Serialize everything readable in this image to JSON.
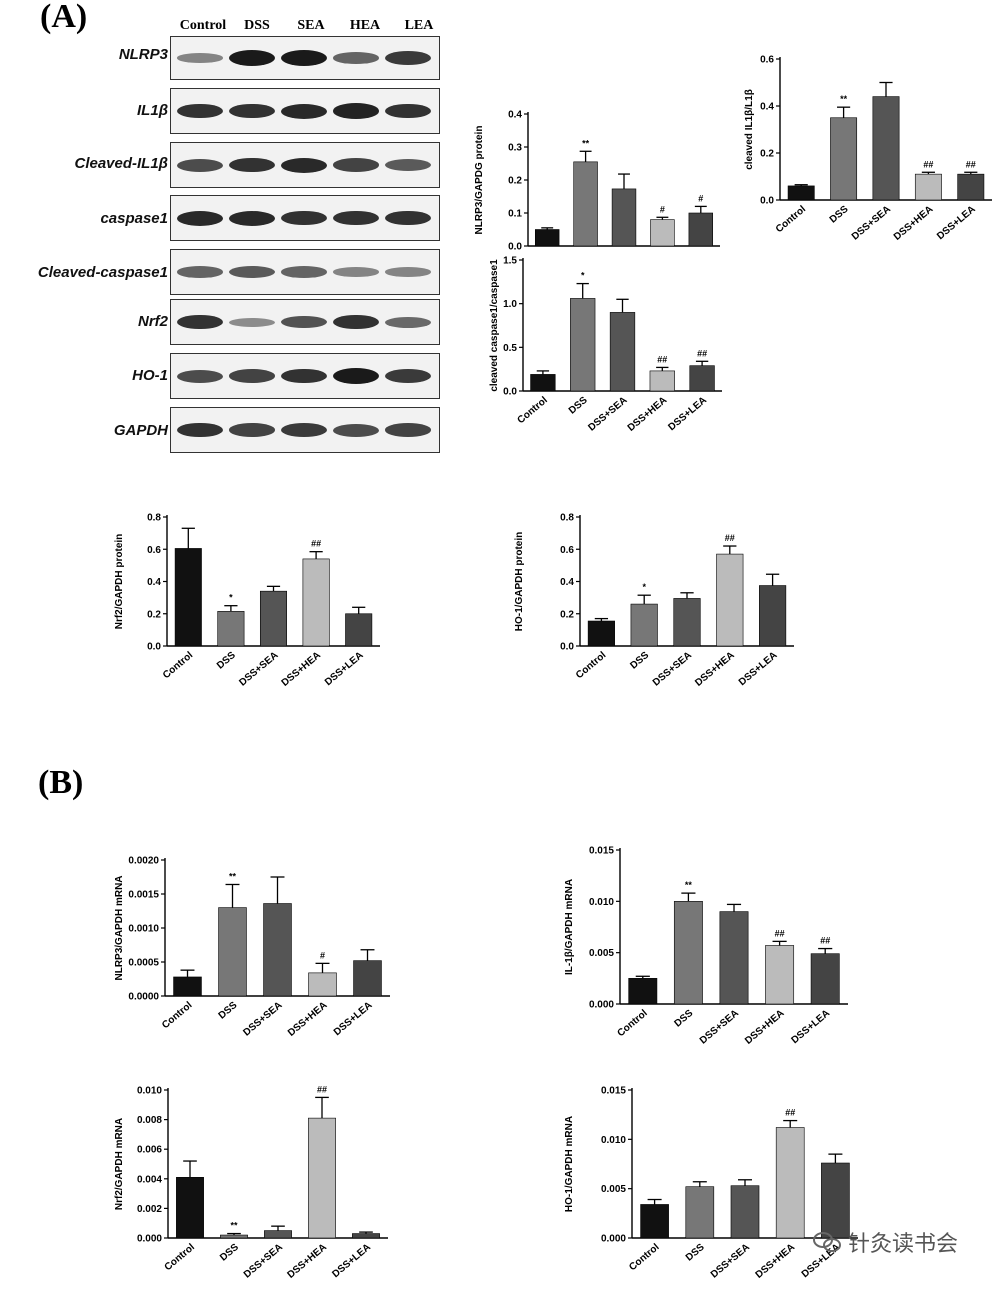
{
  "panels": {
    "a": "(A)",
    "b": "(B)"
  },
  "blot": {
    "lanes": [
      "Control",
      "DSS",
      "SEA",
      "HEA",
      "LEA"
    ],
    "rows": [
      {
        "label": "NLRP3",
        "intensity": [
          0.35,
          1.0,
          1.0,
          0.55,
          0.8
        ]
      },
      {
        "label": "IL1β",
        "intensity": [
          0.85,
          0.85,
          0.9,
          0.95,
          0.85
        ]
      },
      {
        "label": "Cleaved-IL1β",
        "intensity": [
          0.7,
          0.85,
          0.9,
          0.75,
          0.6
        ]
      },
      {
        "label": "caspase1",
        "intensity": [
          0.9,
          0.9,
          0.85,
          0.85,
          0.85
        ]
      },
      {
        "label": "Cleaved-caspase1",
        "intensity": [
          0.55,
          0.6,
          0.55,
          0.35,
          0.35
        ]
      },
      {
        "label": "Nrf2",
        "intensity": [
          0.85,
          0.3,
          0.65,
          0.85,
          0.5
        ]
      },
      {
        "label": "HO-1",
        "intensity": [
          0.7,
          0.75,
          0.85,
          1.0,
          0.8
        ]
      },
      {
        "label": "GAPDH",
        "intensity": [
          0.85,
          0.75,
          0.8,
          0.7,
          0.75
        ]
      }
    ]
  },
  "colors": {
    "c0": "#111111",
    "c1": "#777777",
    "c2": "#555555",
    "c3": "#bbbbbb",
    "c4": "#444444"
  },
  "chart_data": [
    {
      "id": "nlrp3-protein",
      "type": "bar",
      "ylabel": "NLRP3/GAPDG protein",
      "categories": [
        "control",
        "DSS",
        "DSS+SEA",
        "DSS+HEA",
        "DSS+LEA"
      ],
      "values": [
        0.05,
        0.255,
        0.173,
        0.08,
        0.1
      ],
      "errors": [
        0.005,
        0.032,
        0.045,
        0.007,
        0.02
      ],
      "annotations": [
        "",
        "**",
        "",
        "#",
        "#"
      ],
      "ylim": [
        0,
        0.4
      ],
      "yticks": [
        "0.0",
        "0.1",
        "0.2",
        "0.3",
        "0.4"
      ]
    },
    {
      "id": "il1b-protein",
      "type": "bar",
      "ylabel": "cleaved IL1β/L1β",
      "categories": [
        "Control",
        "DSS",
        "DSS+SEA",
        "DSS+HEA",
        "DSS+LEA"
      ],
      "values": [
        0.06,
        0.35,
        0.44,
        0.11,
        0.11
      ],
      "errors": [
        0.005,
        0.045,
        0.06,
        0.008,
        0.008
      ],
      "annotations": [
        "",
        "**",
        "",
        "##",
        "##"
      ],
      "ylim": [
        0,
        0.6
      ],
      "yticks": [
        "0.0",
        "0.2",
        "0.4",
        "0.6"
      ]
    },
    {
      "id": "caspase1-protein",
      "type": "bar",
      "ylabel": "cleaved caspase1/caspase1",
      "categories": [
        "Control",
        "DSS",
        "DSS+SEA",
        "DSS+HEA",
        "DSS+LEA"
      ],
      "values": [
        0.19,
        1.06,
        0.9,
        0.23,
        0.29
      ],
      "errors": [
        0.04,
        0.17,
        0.15,
        0.04,
        0.05
      ],
      "annotations": [
        "",
        "*",
        "",
        "##",
        "##"
      ],
      "ylim": [
        0,
        1.5
      ],
      "yticks": [
        "0.0",
        "0.5",
        "1.0",
        "1.5"
      ]
    },
    {
      "id": "nrf2-protein",
      "type": "bar",
      "ylabel": "Nrf2/GAPDH protein",
      "categories": [
        "Control",
        "DSS",
        "DSS+SEA",
        "DSS+HEA",
        "DSS+LEA"
      ],
      "values": [
        0.605,
        0.215,
        0.34,
        0.54,
        0.2
      ],
      "errors": [
        0.125,
        0.035,
        0.03,
        0.045,
        0.04
      ],
      "annotations": [
        "",
        "*",
        "",
        "##",
        ""
      ],
      "ylim": [
        0,
        0.8
      ],
      "yticks": [
        "0.0",
        "0.2",
        "0.4",
        "0.6",
        "0.8"
      ]
    },
    {
      "id": "ho1-protein",
      "type": "bar",
      "ylabel": "HO-1/GAPDH protein",
      "categories": [
        "Control",
        "DSS",
        "DSS+SEA",
        "DSS+HEA",
        "DSS+LEA"
      ],
      "values": [
        0.155,
        0.26,
        0.295,
        0.57,
        0.375
      ],
      "errors": [
        0.015,
        0.055,
        0.035,
        0.05,
        0.07
      ],
      "annotations": [
        "",
        "*",
        "",
        "##",
        ""
      ],
      "ylim": [
        0,
        0.8
      ],
      "yticks": [
        "0.0",
        "0.2",
        "0.4",
        "0.6",
        "0.8"
      ]
    },
    {
      "id": "nlrp3-mrna",
      "type": "bar",
      "ylabel": "NLRP3/GAPDH mRNA",
      "categories": [
        "Control",
        "DSS",
        "DSS+SEA",
        "DSS+HEA",
        "DSS+LEA"
      ],
      "values": [
        0.00028,
        0.0013,
        0.00136,
        0.00034,
        0.00052
      ],
      "errors": [
        0.0001,
        0.00034,
        0.00039,
        0.00014,
        0.00016
      ],
      "annotations": [
        "",
        "**",
        "",
        "#",
        ""
      ],
      "ylim": [
        0,
        0.002
      ],
      "yticks": [
        "0.0000",
        "0.0005",
        "0.0010",
        "0.0015",
        "0.0020"
      ]
    },
    {
      "id": "il1b-mrna",
      "type": "bar",
      "ylabel": "IL-1β/GAPDH mRNA",
      "categories": [
        "Control",
        "DSS",
        "DSS+SEA",
        "DSS+HEA",
        "DSS+LEA"
      ],
      "values": [
        0.0025,
        0.01,
        0.009,
        0.0057,
        0.0049
      ],
      "errors": [
        0.0002,
        0.0008,
        0.0007,
        0.0004,
        0.0005
      ],
      "annotations": [
        "",
        "**",
        "",
        "##",
        "##"
      ],
      "ylim": [
        0,
        0.015
      ],
      "yticks": [
        "0.000",
        "0.005",
        "0.010",
        "0.015"
      ]
    },
    {
      "id": "nrf2-mrna",
      "type": "bar",
      "ylabel": "Nrf2/GAPDH mRNA",
      "categories": [
        "Control",
        "DSS",
        "DSS+SEA",
        "DSS+HEA",
        "DSS+LEA"
      ],
      "values": [
        0.0041,
        0.0002,
        0.0005,
        0.0081,
        0.0003
      ],
      "errors": [
        0.0011,
        0.0001,
        0.0003,
        0.0014,
        0.0001
      ],
      "annotations": [
        "",
        "**",
        "",
        "##",
        ""
      ],
      "ylim": [
        0,
        0.01
      ],
      "yticks": [
        "0.000",
        "0.002",
        "0.004",
        "0.006",
        "0.008",
        "0.010"
      ]
    },
    {
      "id": "ho1-mrna",
      "type": "bar",
      "ylabel": "HO-1/GAPDH mRNA",
      "categories": [
        "Control",
        "DSS",
        "DSS+SEA",
        "DSS+HEA",
        "DSS+LEA"
      ],
      "values": [
        0.0034,
        0.0052,
        0.0053,
        0.0112,
        0.0076
      ],
      "errors": [
        0.0005,
        0.0005,
        0.0006,
        0.0007,
        0.0009
      ],
      "annotations": [
        "",
        "",
        "",
        "##",
        ""
      ],
      "ylim": [
        0,
        0.015
      ],
      "yticks": [
        "0.000",
        "0.005",
        "0.010",
        "0.015"
      ]
    }
  ],
  "watermark": {
    "text": "针灸读书会",
    "logo_icon": "wechat-icon"
  }
}
